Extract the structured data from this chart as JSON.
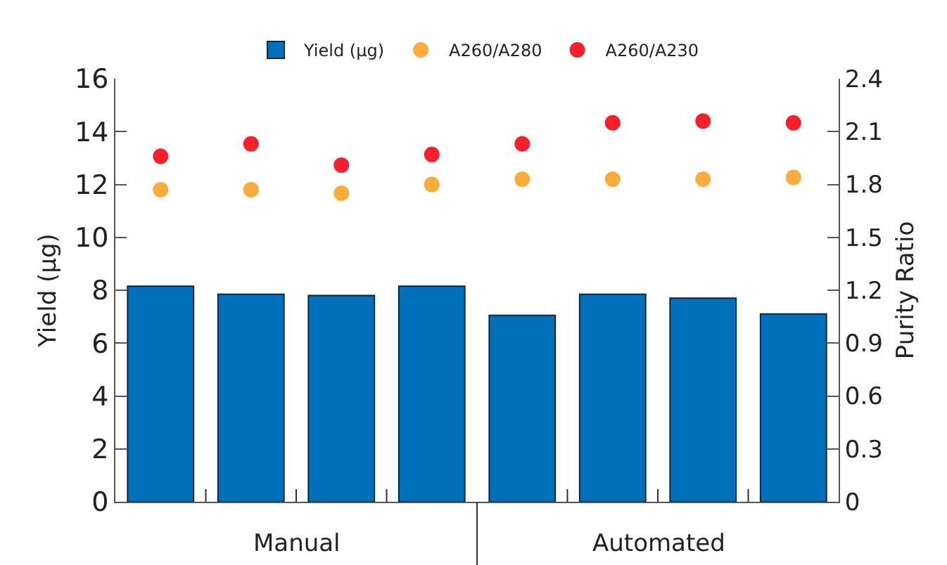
{
  "chart_data": {
    "type": "bar",
    "categories": [
      null,
      null,
      null,
      null,
      null,
      null,
      null,
      null
    ],
    "series": [
      {
        "name": "Yield (µg)",
        "color": "#0070bb",
        "values": [
          8.15,
          7.85,
          7.8,
          8.15,
          7.05,
          7.85,
          7.7,
          7.1
        ]
      },
      {
        "name": "A260/A280",
        "type": "scatter",
        "axis": "y2",
        "color": "#fbac3a",
        "values": [
          1.77,
          1.77,
          1.75,
          1.8,
          1.83,
          1.83,
          1.83,
          1.84
        ]
      },
      {
        "name": "A260/A230",
        "type": "scatter",
        "axis": "y2",
        "color": "#f5202c",
        "values": [
          1.96,
          2.03,
          1.91,
          1.97,
          2.03,
          2.15,
          2.16,
          2.15
        ]
      }
    ],
    "ylabel": "Yield (µg)",
    "y2label": "Purity Ratio",
    "ylim": [
      0,
      16
    ],
    "yticks": [
      0,
      2,
      4,
      6,
      8,
      10,
      12,
      14,
      16
    ],
    "y2lim": [
      0,
      2.4
    ],
    "y2ticks": [
      0,
      {
        "value": 0.3,
        "label": "0.3"
      },
      {
        "value": 0.6,
        "label": "0.6"
      },
      {
        "value": 0.9,
        "label": "0.9"
      },
      {
        "value": 1.2,
        "label": "1.2"
      },
      {
        "value": 1.5,
        "label": "1.5"
      },
      {
        "value": 1.8,
        "label": "1.8"
      },
      {
        "value": 2.1,
        "label": "2.1"
      },
      {
        "value": 2.4,
        "label": "2.4"
      }
    ],
    "annotations": [
      "Manual",
      "Automated"
    ],
    "marker": "circle",
    "grid": false,
    "legend": "top"
  }
}
